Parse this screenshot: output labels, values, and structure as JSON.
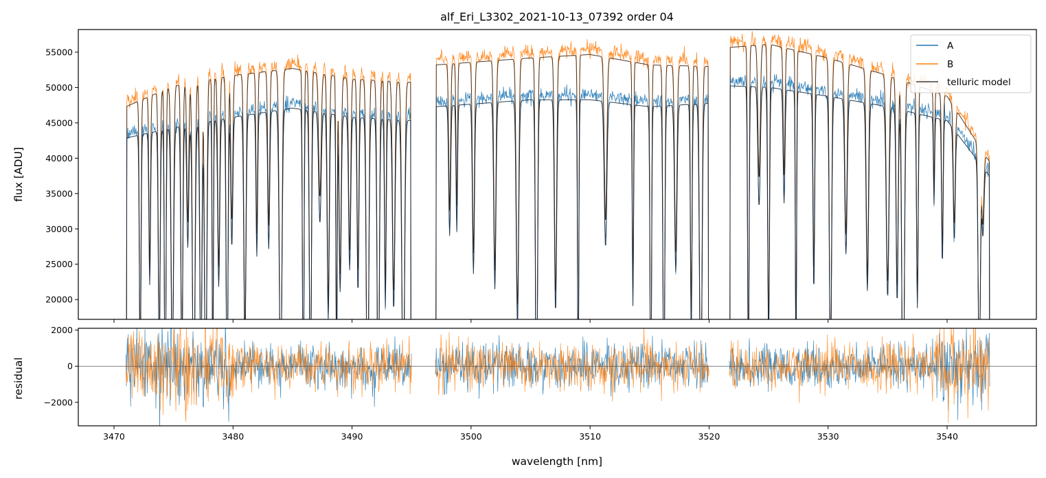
{
  "chart_data": {
    "type": "line",
    "title": "alf_Eri_L3302_2021-10-13_07392  order 04",
    "xlabel": "wavelength [nm]",
    "xlim": [
      3467,
      3547.5
    ],
    "x_ticks": [
      3470,
      3480,
      3490,
      3500,
      3510,
      3520,
      3530,
      3540
    ],
    "x_tick_labels": [
      "3470",
      "3480",
      "3490",
      "3500",
      "3510",
      "3520",
      "3530",
      "3540"
    ],
    "legend": {
      "placement": "top-right",
      "entries": [
        "A",
        "B",
        "telluric model"
      ]
    },
    "colors": {
      "A": "#1f77b4",
      "B": "#ff7f0e",
      "model": "#3d3d3d"
    },
    "segments": [
      [
        3471.0,
        3495.0
      ],
      [
        3497.0,
        3520.0
      ],
      [
        3521.7,
        3543.6
      ]
    ],
    "top_panel": {
      "ylabel": "flux [ADU]",
      "ylim": [
        17200,
        58200
      ],
      "y_ticks": [
        20000,
        25000,
        30000,
        35000,
        40000,
        45000,
        50000,
        55000
      ],
      "y_tick_labels": [
        "20000",
        "25000",
        "30000",
        "35000",
        "40000",
        "45000",
        "50000",
        "55000"
      ],
      "series": [
        {
          "name": "A",
          "continuum": [
            [
              3471,
              43500
            ],
            [
              3475,
              45000
            ],
            [
              3480,
              46500
            ],
            [
              3485,
              47800
            ],
            [
              3490,
              46500
            ],
            [
              3495,
              46000
            ],
            [
              3497,
              48000
            ],
            [
              3505,
              49000
            ],
            [
              3510,
              49000
            ],
            [
              3515,
              48000
            ],
            [
              3520,
              48500
            ],
            [
              3521.7,
              51000
            ],
            [
              3525,
              50800
            ],
            [
              3530,
              49500
            ],
            [
              3535,
              48000
            ],
            [
              3540,
              46000
            ],
            [
              3543.6,
              38000
            ]
          ]
        },
        {
          "name": "B",
          "continuum": [
            [
              3471,
              48000
            ],
            [
              3475,
              51000
            ],
            [
              3480,
              52500
            ],
            [
              3485,
              53500
            ],
            [
              3490,
              52000
            ],
            [
              3495,
              51500
            ],
            [
              3497,
              54000
            ],
            [
              3505,
              55000
            ],
            [
              3510,
              55500
            ],
            [
              3515,
              54000
            ],
            [
              3520,
              53800
            ],
            [
              3521.7,
              56500
            ],
            [
              3525,
              57000
            ],
            [
              3530,
              55000
            ],
            [
              3535,
              52500
            ],
            [
              3540,
              49500
            ],
            [
              3543.6,
              40000
            ]
          ]
        }
      ],
      "absorption_lines_nm": [
        3472.2,
        3473.0,
        3473.8,
        3474.3,
        3474.9,
        3475.7,
        3476.2,
        3476.7,
        3477.3,
        3477.7,
        3478.3,
        3478.8,
        3479.5,
        3479.9,
        3481.0,
        3482.0,
        3483.0,
        3484.0,
        3485.9,
        3486.5,
        3487.3,
        3488.0,
        3488.7,
        3489.0,
        3489.8,
        3490.5,
        3491.3,
        3492.2,
        3492.8,
        3493.5,
        3494.3,
        3498.2,
        3498.8,
        3500.2,
        3502.0,
        3503.9,
        3505.5,
        3507.1,
        3509.0,
        3511.3,
        3513.6,
        3515.1,
        3516.2,
        3517.2,
        3518.5,
        3519.3,
        3523.3,
        3524.2,
        3525.0,
        3526.3,
        3527.3,
        3528.8,
        3530.2,
        3531.5,
        3533.3,
        3535.0,
        3535.8,
        3536.3,
        3537.5,
        3538.9,
        3539.6,
        3540.6,
        3542.7,
        3543.0
      ]
    },
    "bottom_panel": {
      "ylabel": "residual",
      "ylim": [
        -3300,
        2100
      ],
      "y_ticks": [
        -2000,
        0,
        2000
      ],
      "y_tick_labels": [
        "−2000",
        "0",
        "2000"
      ],
      "zero_line": 0
    }
  }
}
